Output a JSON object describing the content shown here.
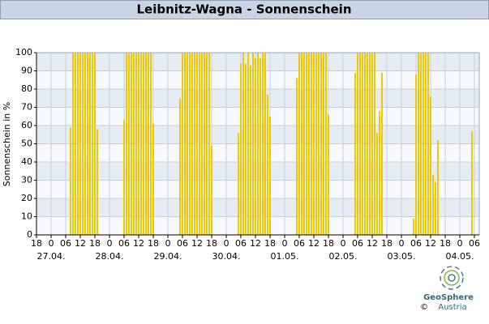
{
  "chart_data": {
    "type": "bar",
    "title": "Leibnitz-Wagna - Sonnenschein",
    "y_label": "Sonnenschein in %",
    "color": "#f2c800",
    "grid": true,
    "x": [
      14,
      15,
      16,
      17,
      18,
      19,
      20,
      21,
      22,
      23,
      24,
      25,
      36,
      37,
      38,
      39,
      40,
      41,
      42,
      43,
      44,
      45,
      46,
      47,
      48,
      59,
      60,
      61,
      62,
      63,
      64,
      65,
      66,
      67,
      68,
      69,
      70,
      71,
      72,
      83,
      84,
      85,
      86,
      87,
      88,
      89,
      90,
      91,
      92,
      93,
      94,
      95,
      96,
      107,
      108,
      109,
      110,
      111,
      112,
      113,
      114,
      115,
      116,
      117,
      118,
      119,
      120,
      131,
      132,
      133,
      134,
      135,
      136,
      137,
      138,
      139,
      140,
      141,
      142,
      155,
      156,
      157,
      158,
      159,
      160,
      161,
      162,
      163,
      164,
      165,
      179
    ],
    "values": [
      59,
      100,
      100,
      100,
      100,
      100,
      100,
      100,
      100,
      100,
      100,
      58,
      63,
      100,
      100,
      100,
      100,
      100,
      100,
      100,
      100,
      100,
      100,
      100,
      61,
      75,
      100,
      100,
      100,
      100,
      100,
      100,
      100,
      100,
      100,
      100,
      100,
      100,
      49,
      56,
      94,
      100,
      94,
      100,
      93,
      100,
      97,
      100,
      97,
      100,
      100,
      77,
      65,
      86,
      100,
      100,
      100,
      100,
      100,
      100,
      100,
      100,
      100,
      100,
      100,
      100,
      66,
      89,
      100,
      100,
      100,
      100,
      100,
      100,
      100,
      100,
      56,
      68,
      89,
      9,
      88,
      100,
      100,
      100,
      100,
      100,
      76,
      33,
      29,
      52,
      57
    ],
    "xlim": [
      0,
      182
    ],
    "xticks": [
      {
        "value": 0,
        "label": "18"
      },
      {
        "value": 6,
        "label": "0"
      },
      {
        "value": 12,
        "label": "06"
      },
      {
        "value": 18,
        "label": "12"
      },
      {
        "value": 24,
        "label": "18"
      },
      {
        "value": 30,
        "label": "0"
      },
      {
        "value": 36,
        "label": "06"
      },
      {
        "value": 42,
        "label": "12"
      },
      {
        "value": 48,
        "label": "18"
      },
      {
        "value": 54,
        "label": "0"
      },
      {
        "value": 60,
        "label": "06"
      },
      {
        "value": 66,
        "label": "12"
      },
      {
        "value": 72,
        "label": "18"
      },
      {
        "value": 78,
        "label": "0"
      },
      {
        "value": 84,
        "label": "06"
      },
      {
        "value": 90,
        "label": "12"
      },
      {
        "value": 96,
        "label": "18"
      },
      {
        "value": 102,
        "label": "0"
      },
      {
        "value": 108,
        "label": "06"
      },
      {
        "value": 114,
        "label": "12"
      },
      {
        "value": 120,
        "label": "18"
      },
      {
        "value": 126,
        "label": "0"
      },
      {
        "value": 132,
        "label": "06"
      },
      {
        "value": 138,
        "label": "12"
      },
      {
        "value": 144,
        "label": "18"
      },
      {
        "value": 150,
        "label": "0"
      },
      {
        "value": 156,
        "label": "06"
      },
      {
        "value": 162,
        "label": "12"
      },
      {
        "value": 168,
        "label": "18"
      },
      {
        "value": 174,
        "label": "0"
      },
      {
        "value": 180,
        "label": "06"
      }
    ],
    "date_labels": [
      {
        "value": 6,
        "label": "27.04."
      },
      {
        "value": 30,
        "label": "28.04."
      },
      {
        "value": 54,
        "label": "29.04."
      },
      {
        "value": 78,
        "label": "30.04."
      },
      {
        "value": 102,
        "label": "01.05."
      },
      {
        "value": 126,
        "label": "02.05."
      },
      {
        "value": 150,
        "label": "03.05."
      },
      {
        "value": 174,
        "label": "04.05."
      }
    ],
    "ylim": [
      0,
      100
    ],
    "yticks": [
      0,
      10,
      20,
      30,
      40,
      50,
      60,
      70,
      80,
      90,
      100
    ]
  },
  "logo": {
    "name": "GeoSphere",
    "sub": "Austria",
    "copyright": "©"
  }
}
